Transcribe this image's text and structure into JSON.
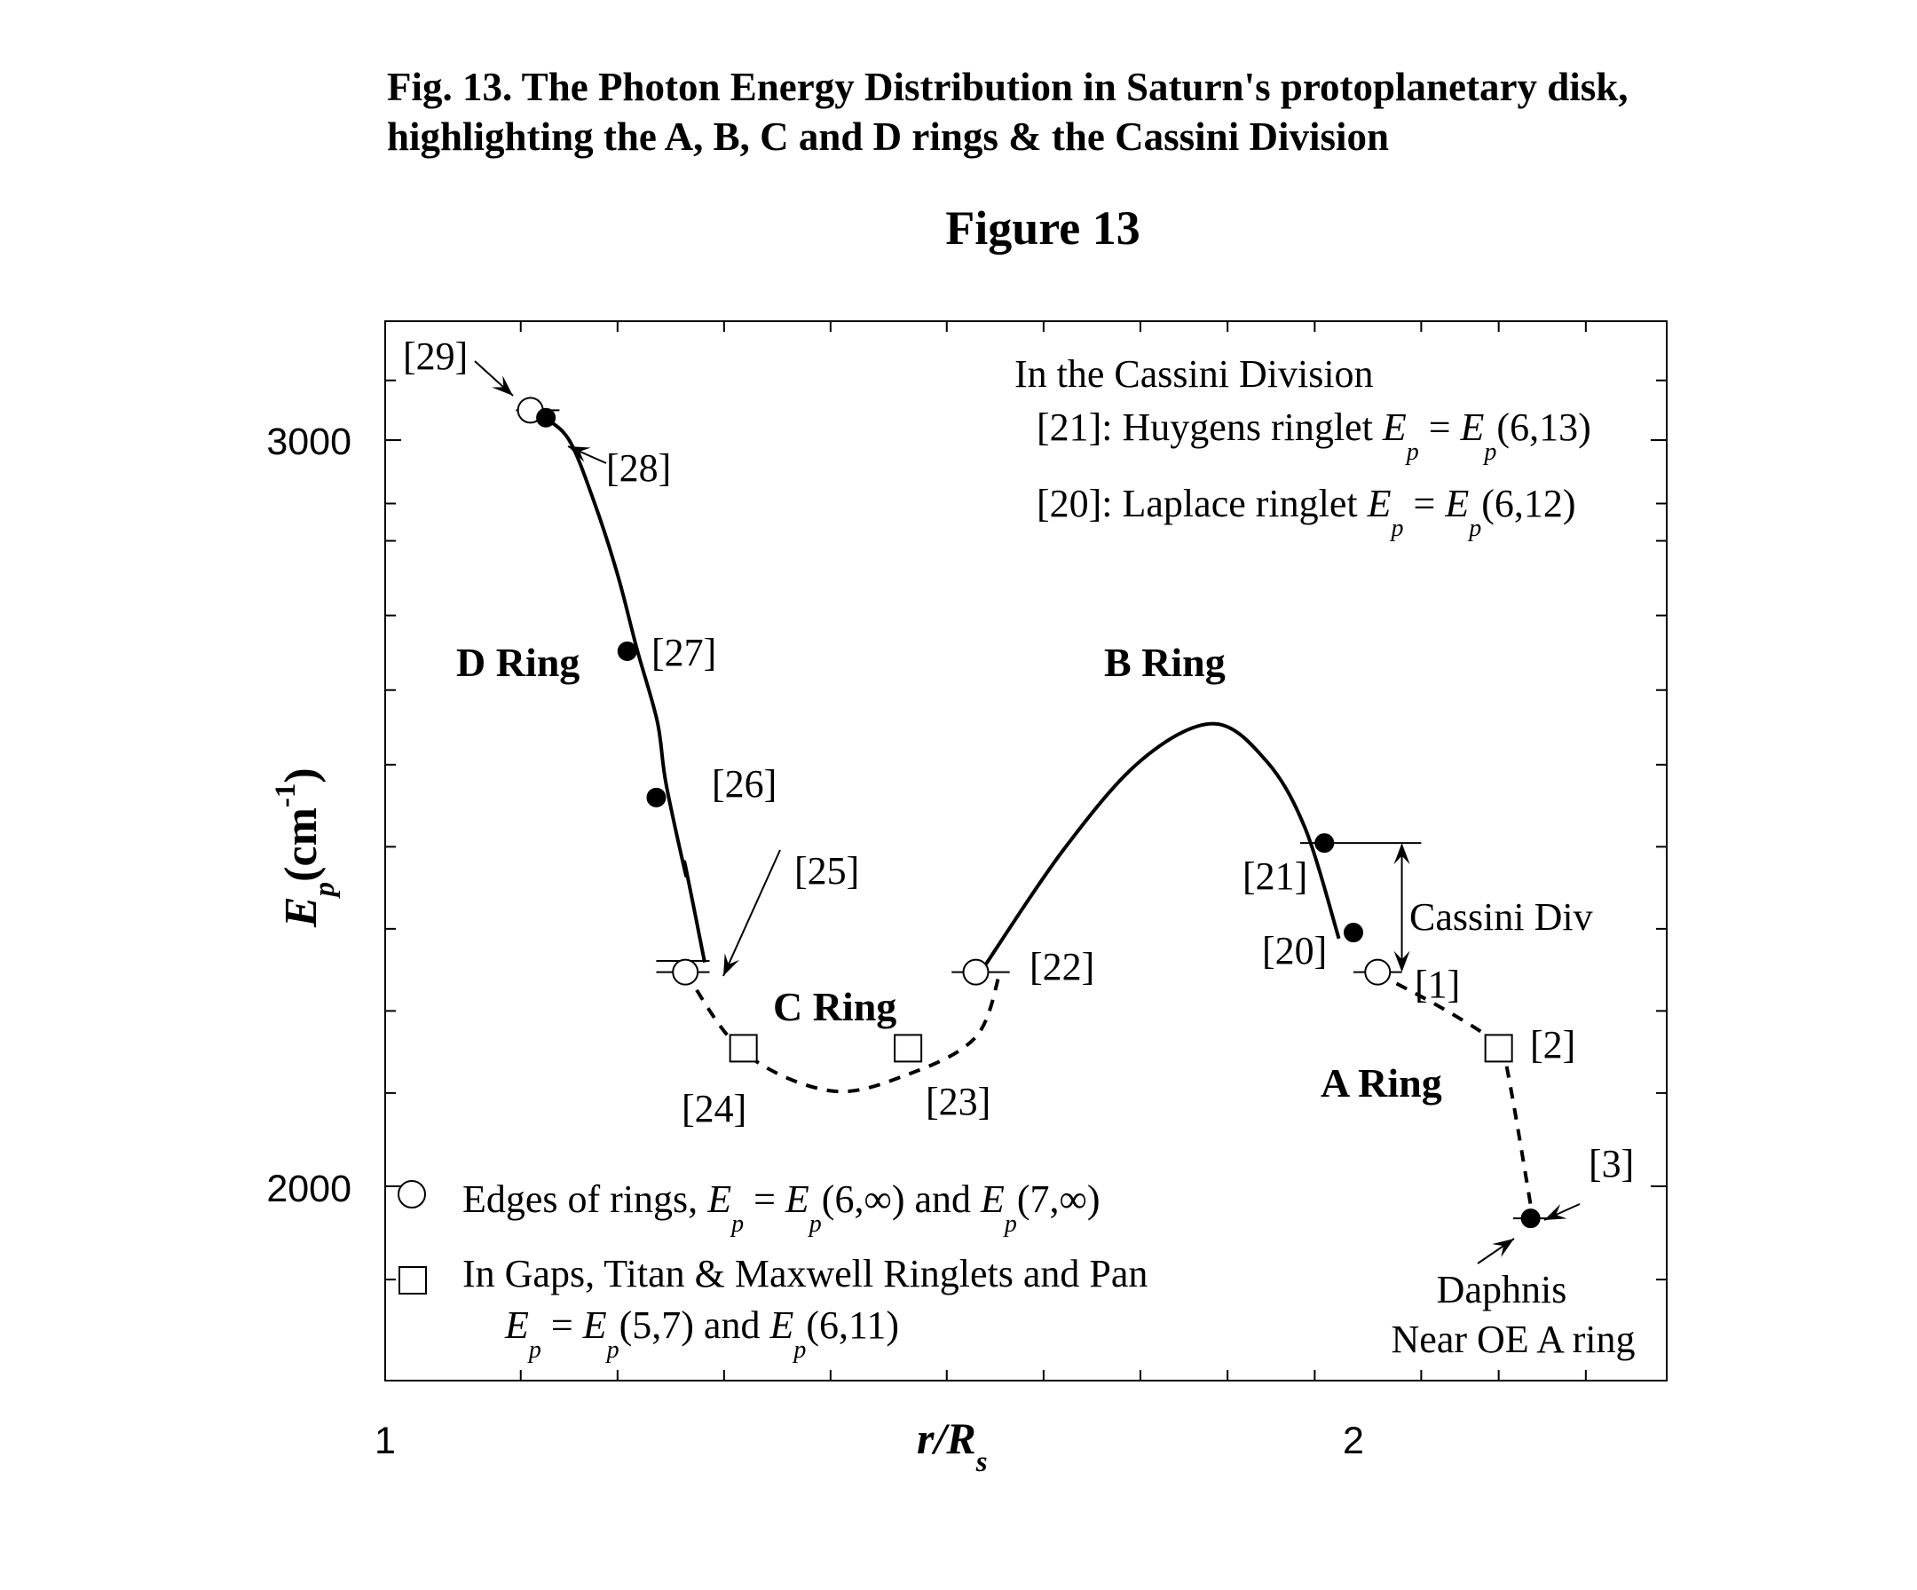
{
  "caption": "Fig. 13. The Photon Energy Distribution in Saturn's protoplanetary disk, highlighting the A, B, C and D rings & the Cassini Division",
  "chart_data": {
    "type": "line",
    "title": "Figure 13",
    "xlabel": {
      "main": "r/R",
      "sub": "s"
    },
    "ylabel": {
      "main": "E",
      "sub": "p",
      "unit": "(cm",
      "sup": "-1",
      "close": ")"
    },
    "xlim": [
      1.0,
      2.33
    ],
    "ylim": [
      1740,
      3160
    ],
    "x_ticks": [
      {
        "value": 1.0,
        "label": "1"
      },
      {
        "value": 2.0,
        "label": "2"
      }
    ],
    "y_ticks": [
      {
        "value": 2000,
        "label": "2000"
      },
      {
        "value": 3000,
        "label": "3000"
      }
    ],
    "x_minor_ticks": [
      1.14,
      1.24,
      1.35,
      1.46,
      1.58,
      1.68,
      1.78,
      1.87,
      1.96,
      2.07,
      2.15,
      2.24
    ],
    "y_minor_ticks": [
      1875,
      2125,
      2235,
      2345,
      2455,
      2565,
      2665,
      2765,
      2865,
      2915,
      3080
    ],
    "curves": [
      {
        "name": "D-ring",
        "style": "solid",
        "points": [
          [
            1.165,
            3030
          ],
          [
            1.19,
            3000
          ],
          [
            1.215,
            2920
          ],
          [
            1.24,
            2820
          ],
          [
            1.26,
            2720
          ],
          [
            1.281,
            2623
          ],
          [
            1.29,
            2540
          ],
          [
            1.31,
            2420
          ],
          [
            1.31,
            2430
          ],
          [
            1.33,
            2300
          ]
        ]
      },
      {
        "name": "C-ring",
        "style": "dashed",
        "points": [
          [
            1.31,
            2287
          ],
          [
            1.37,
            2180
          ],
          [
            1.46,
            2128
          ],
          [
            1.54,
            2150
          ],
          [
            1.61,
            2200
          ],
          [
            1.635,
            2287
          ]
        ]
      },
      {
        "name": "B-ring",
        "style": "solid",
        "points": [
          [
            1.615,
            2287
          ],
          [
            1.7,
            2450
          ],
          [
            1.78,
            2570
          ],
          [
            1.855,
            2620
          ],
          [
            1.91,
            2570
          ],
          [
            1.95,
            2480
          ],
          [
            1.985,
            2332
          ]
        ]
      },
      {
        "name": "A-ring",
        "style": "dashed",
        "points": [
          [
            2.025,
            2285
          ],
          [
            2.09,
            2240
          ],
          [
            2.14,
            2200
          ],
          [
            2.155,
            2180
          ],
          [
            2.185,
            1960
          ]
        ]
      }
    ],
    "points": [
      {
        "label": "[29]",
        "marker": "open-circle",
        "x": 1.15,
        "y": 3040
      },
      {
        "label": "[28]",
        "marker": "filled-circle",
        "x": 1.166,
        "y": 3030
      },
      {
        "label": "[27]",
        "marker": "filled-circle",
        "x": 1.25,
        "y": 2717
      },
      {
        "label": "[26]",
        "marker": "filled-circle",
        "x": 1.28,
        "y": 2521
      },
      {
        "label": "[25]",
        "marker": "open-circle",
        "x": 1.31,
        "y": 2287
      },
      {
        "label": "[24]",
        "marker": "open-square",
        "x": 1.37,
        "y": 2185
      },
      {
        "label": "[23]",
        "marker": "open-square",
        "x": 1.54,
        "y": 2185
      },
      {
        "label": "[22]",
        "marker": "open-circle",
        "x": 1.61,
        "y": 2287
      },
      {
        "label": "[21]",
        "marker": "filled-circle",
        "x": 1.97,
        "y": 2460
      },
      {
        "label": "[20]",
        "marker": "filled-circle",
        "x": 2.0,
        "y": 2340
      },
      {
        "label": "[1]",
        "marker": "open-circle",
        "x": 2.025,
        "y": 2287
      },
      {
        "label": "[2]",
        "marker": "open-square",
        "x": 2.15,
        "y": 2185
      },
      {
        "label": "[3]",
        "marker": "filled-circle",
        "x": 2.183,
        "y": 1957
      }
    ],
    "annotations": {
      "ring_names": {
        "d": "D Ring",
        "c": "C Ring",
        "b": "B Ring",
        "a": "A Ring"
      },
      "cassini": {
        "heading": "In the Cassini Division",
        "huygens": {
          "prefix": "[21]: Huygens ringlet ",
          "E1": "E",
          "p1": "p",
          "eq": " = ",
          "E2": "E",
          "p2": "p",
          "arg": "(6,13)"
        },
        "laplace": {
          "prefix": "[20]: Laplace ringlet ",
          "E1": "E",
          "p1": "p",
          "eq": " = ",
          "E2": "E",
          "p2": "p",
          "arg": "(6,12)"
        }
      },
      "cassini_div": "Cassini Div",
      "daphnis": [
        "Daphnis",
        "Near OE A ring"
      ]
    },
    "legend": {
      "placement": "bottom-left",
      "circle": {
        "prefix": "Edges of rings, ",
        "E1": "E",
        "p1": "p",
        "eq": " = ",
        "E2": "E",
        "p2": "p",
        "arg": "(6,∞) and ",
        "E3": "E",
        "p3": "p",
        "arg2": "(7,∞)"
      },
      "square": {
        "line1": "In Gaps, Titan & Maxwell Ringlets and Pan",
        "line2": {
          "E1": "E",
          "p1": "p",
          "eq": " = ",
          "E2": "E",
          "p2": "p",
          "arg": "(5,7) and ",
          "E3": "E",
          "p3": "p",
          "arg2": "(6,11)"
        }
      }
    },
    "grid": false,
    "colors": {
      "ink": "#000000",
      "background": "#ffffff"
    }
  }
}
